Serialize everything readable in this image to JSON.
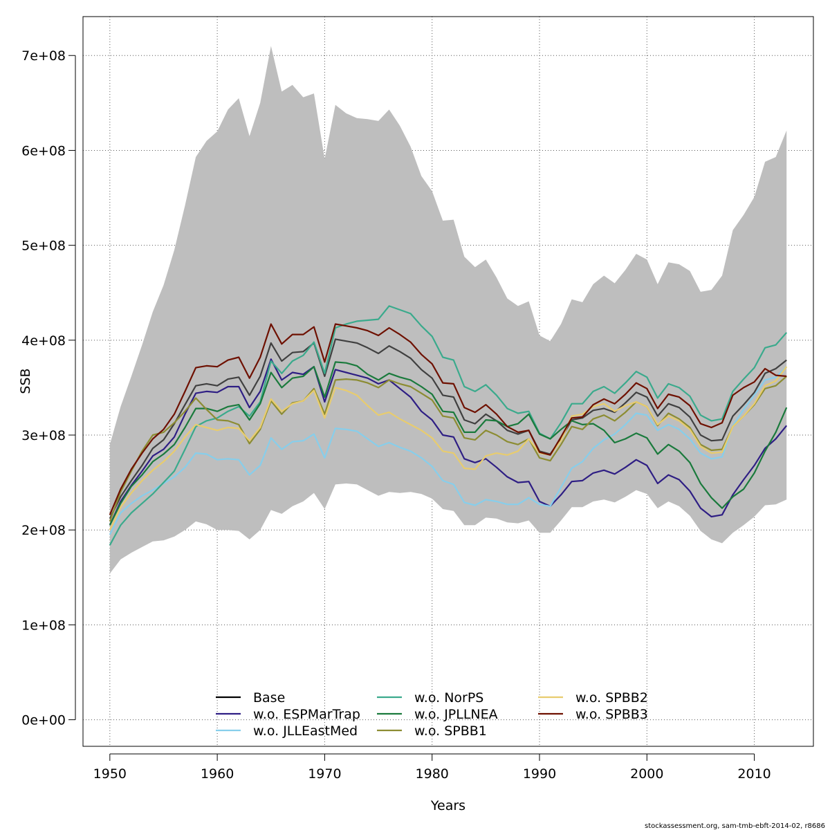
{
  "chart_data": {
    "type": "line",
    "xlabel": "Years",
    "ylabel": "SSB",
    "xlim": [
      1947.5,
      2015.5
    ],
    "ylim": [
      -28000000,
      741000000
    ],
    "xticks": [
      "1950",
      "1960",
      "1970",
      "1980",
      "1990",
      "2000",
      "2010"
    ],
    "xtick_values": [
      1950,
      1960,
      1970,
      1980,
      1990,
      2000,
      2010
    ],
    "yticks": [
      "0e+00",
      "1e+08",
      "2e+08",
      "3e+08",
      "4e+08",
      "5e+08",
      "6e+08",
      "7e+08"
    ],
    "ytick_values": [
      0,
      100000000,
      200000000,
      300000000,
      400000000,
      500000000,
      600000000,
      700000000
    ],
    "grid": true,
    "legend_position": "bottom-center",
    "x": [
      1950,
      1951,
      1952,
      1953,
      1954,
      1955,
      1956,
      1957,
      1958,
      1959,
      1960,
      1961,
      1962,
      1963,
      1964,
      1965,
      1966,
      1967,
      1968,
      1969,
      1970,
      1971,
      1972,
      1973,
      1974,
      1975,
      1976,
      1977,
      1978,
      1979,
      1980,
      1981,
      1982,
      1983,
      1984,
      1985,
      1986,
      1987,
      1988,
      1989,
      1990,
      1991,
      1992,
      1993,
      1994,
      1995,
      1996,
      1997,
      1998,
      1999,
      2000,
      2001,
      2002,
      2003,
      2004,
      2005,
      2006,
      2007,
      2008,
      2009,
      2010,
      2011,
      2012,
      2013
    ],
    "band": {
      "color": "#bebebe",
      "upper": [
        290,
        330,
        362,
        395,
        430,
        458,
        495,
        542,
        593,
        610,
        620,
        643,
        655,
        615,
        650,
        710,
        662,
        669,
        656,
        660,
        591,
        648,
        639,
        634,
        633,
        631,
        643,
        626,
        604,
        573,
        557,
        526,
        527,
        488,
        477,
        485,
        466,
        444,
        436,
        441,
        405,
        399,
        417,
        443,
        440,
        459,
        468,
        460,
        474,
        491,
        485,
        459,
        482,
        480,
        473,
        451,
        453,
        468,
        516,
        532,
        551,
        588,
        593,
        621
      ],
      "lower": [
        154,
        169,
        176,
        182,
        188,
        189,
        193,
        200,
        209,
        206,
        200,
        200,
        199,
        190,
        200,
        221,
        217,
        225,
        230,
        239,
        222,
        248,
        249,
        248,
        242,
        236,
        240,
        239,
        240,
        238,
        233,
        222,
        220,
        205,
        205,
        213,
        212,
        208,
        207,
        210,
        197,
        197,
        210,
        224,
        224,
        230,
        232,
        229,
        235,
        242,
        238,
        223,
        230,
        225,
        215,
        199,
        190,
        186,
        197,
        205,
        214,
        226,
        227,
        232
      ]
    },
    "series": [
      {
        "name": "Base",
        "color": "#404040",
        "values": [
          212,
          235,
          252,
          268,
          286,
          295,
          312,
          332,
          352,
          354,
          352,
          359,
          361,
          342,
          362,
          397,
          378,
          387,
          388,
          397,
          362,
          401,
          399,
          397,
          392,
          386,
          394,
          388,
          381,
          369,
          360,
          342,
          340,
          316,
          312,
          322,
          315,
          305,
          301,
          305,
          283,
          280,
          296,
          316,
          318,
          326,
          328,
          324,
          334,
          345,
          340,
          320,
          333,
          329,
          319,
          300,
          294,
          295,
          320,
          332,
          345,
          365,
          370,
          379
        ]
      },
      {
        "name": "w.o. ESPMarTrap",
        "color": "#2e1e84",
        "values": [
          205,
          230,
          247,
          262,
          278,
          285,
          298,
          322,
          344,
          346,
          345,
          351,
          351,
          329,
          346,
          380,
          358,
          366,
          364,
          372,
          335,
          369,
          366,
          363,
          360,
          354,
          358,
          349,
          340,
          325,
          316,
          300,
          298,
          275,
          271,
          275,
          266,
          256,
          250,
          251,
          230,
          225,
          237,
          251,
          252,
          260,
          263,
          259,
          266,
          274,
          268,
          249,
          258,
          253,
          241,
          223,
          214,
          216,
          237,
          253,
          268,
          286,
          296,
          310
        ]
      },
      {
        "name": "w.o. JLLEastMed",
        "color": "#87ceeb",
        "values": [
          195,
          218,
          228,
          236,
          242,
          249,
          256,
          266,
          281,
          280,
          274,
          275,
          274,
          258,
          268,
          297,
          285,
          293,
          294,
          301,
          276,
          307,
          306,
          304,
          296,
          288,
          292,
          287,
          283,
          276,
          267,
          252,
          248,
          229,
          226,
          232,
          230,
          227,
          227,
          234,
          227,
          225,
          245,
          265,
          272,
          286,
          295,
          301,
          311,
          323,
          321,
          305,
          311,
          306,
          296,
          281,
          275,
          277,
          310,
          327,
          342,
          358,
          361,
          372
        ]
      },
      {
        "name": "w.o. NorPS",
        "color": "#3aaa8c",
        "values": [
          184,
          205,
          218,
          228,
          238,
          250,
          262,
          285,
          309,
          315,
          318,
          325,
          330,
          320,
          335,
          378,
          365,
          378,
          384,
          398,
          365,
          413,
          417,
          420,
          421,
          422,
          436,
          432,
          428,
          415,
          404,
          382,
          379,
          351,
          346,
          353,
          342,
          328,
          323,
          325,
          302,
          296,
          313,
          333,
          333,
          346,
          351,
          344,
          355,
          367,
          361,
          339,
          354,
          350,
          341,
          321,
          315,
          317,
          346,
          359,
          371,
          392,
          395,
          408
        ]
      },
      {
        "name": "w.o. JPLLNEA",
        "color": "#1a7a3c",
        "values": [
          205,
          228,
          246,
          258,
          272,
          280,
          290,
          308,
          328,
          328,
          325,
          330,
          332,
          316,
          333,
          366,
          350,
          360,
          362,
          372,
          340,
          377,
          376,
          373,
          364,
          358,
          365,
          361,
          358,
          351,
          343,
          325,
          324,
          303,
          303,
          316,
          315,
          309,
          312,
          322,
          301,
          296,
          306,
          315,
          311,
          312,
          305,
          292,
          296,
          302,
          297,
          280,
          290,
          283,
          271,
          249,
          234,
          223,
          235,
          243,
          260,
          283,
          303,
          329
        ]
      },
      {
        "name": "w.o. SPBB1",
        "color": "#8c8c32",
        "values": [
          209,
          240,
          262,
          283,
          300,
          303,
          313,
          325,
          339,
          327,
          316,
          315,
          311,
          291,
          306,
          336,
          322,
          334,
          336,
          349,
          322,
          358,
          359,
          358,
          355,
          350,
          358,
          354,
          351,
          344,
          337,
          320,
          318,
          297,
          295,
          305,
          300,
          293,
          290,
          296,
          276,
          273,
          290,
          309,
          306,
          317,
          321,
          315,
          324,
          335,
          330,
          310,
          323,
          317,
          308,
          290,
          284,
          285,
          309,
          320,
          332,
          349,
          352,
          362
        ]
      },
      {
        "name": "w.o. SPBB2",
        "color": "#e8cc6e",
        "values": [
          200,
          224,
          239,
          252,
          263,
          272,
          283,
          298,
          311,
          308,
          305,
          308,
          307,
          294,
          308,
          338,
          325,
          333,
          336,
          347,
          318,
          350,
          347,
          342,
          331,
          321,
          324,
          317,
          311,
          305,
          297,
          283,
          281,
          265,
          264,
          278,
          281,
          279,
          283,
          296,
          281,
          279,
          294,
          320,
          322,
          330,
          333,
          325,
          331,
          335,
          330,
          311,
          320,
          315,
          306,
          288,
          281,
          282,
          309,
          320,
          333,
          352,
          357,
          372
        ]
      },
      {
        "name": "w.o. SPBB3",
        "color": "#6e1000",
        "values": [
          216,
          243,
          264,
          281,
          296,
          306,
          322,
          346,
          371,
          373,
          372,
          379,
          382,
          360,
          382,
          417,
          396,
          406,
          406,
          414,
          377,
          417,
          415,
          413,
          410,
          405,
          413,
          406,
          398,
          385,
          375,
          355,
          354,
          329,
          324,
          332,
          322,
          309,
          303,
          305,
          282,
          279,
          298,
          318,
          319,
          332,
          338,
          333,
          343,
          355,
          349,
          328,
          343,
          340,
          331,
          312,
          308,
          313,
          342,
          350,
          356,
          370,
          363,
          362
        ]
      }
    ],
    "value_unit_note": ""
  },
  "footer": "stockassessment.org, sam-tmb-ebft-2014-02, r8686"
}
